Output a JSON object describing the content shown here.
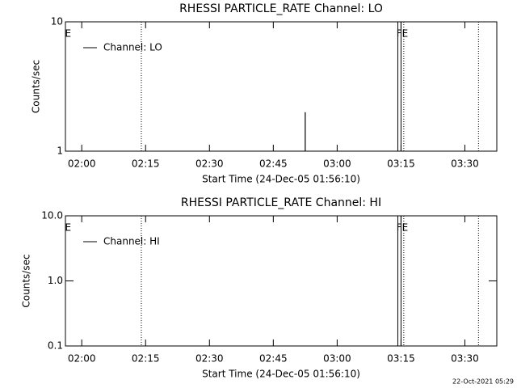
{
  "chart_data": [
    {
      "type": "line",
      "title": "RHESSI PARTICLE_RATE Channel: LO",
      "xlabel": "Start Time (24-Dec-05 01:56:10)",
      "ylabel": "Counts/sec",
      "log_y": true,
      "legend": "upper left",
      "xlim": [
        116.17,
        217.5
      ],
      "xticks": [
        {
          "value": 120,
          "label": "02:00"
        },
        {
          "value": 135,
          "label": "02:15"
        },
        {
          "value": 150,
          "label": "02:30"
        },
        {
          "value": 165,
          "label": "02:45"
        },
        {
          "value": 180,
          "label": "03:00"
        },
        {
          "value": 195,
          "label": "03:15"
        },
        {
          "value": 210,
          "label": "03:30"
        }
      ],
      "ylim": [
        1,
        10
      ],
      "yticks": [
        1,
        10
      ],
      "series": [
        {
          "name": "Channel: LO",
          "color": "#000000",
          "x": [
            172.5,
            172.5
          ],
          "values": [
            1,
            2
          ]
        }
      ],
      "flags": [
        {
          "x": 134,
          "style": "dotted"
        },
        {
          "x": 194.25,
          "style": "solid"
        },
        {
          "x": 195.0,
          "style": "solid"
        },
        {
          "x": 195.65,
          "style": "dotted"
        },
        {
          "x": 213.2,
          "style": "dotted"
        }
      ],
      "flag_labels": [
        {
          "x": 116.8,
          "label": "E"
        },
        {
          "x": 195.3,
          "label": "FE"
        }
      ]
    },
    {
      "type": "line",
      "title": "RHESSI PARTICLE_RATE Channel: HI",
      "xlabel": "Start Time (24-Dec-05 01:56:10)",
      "ylabel": "Counts/sec",
      "log_y": true,
      "legend": "upper left",
      "xlim": [
        116.17,
        217.5
      ],
      "xticks": [
        {
          "value": 120,
          "label": "02:00"
        },
        {
          "value": 135,
          "label": "02:15"
        },
        {
          "value": 150,
          "label": "02:30"
        },
        {
          "value": 165,
          "label": "02:45"
        },
        {
          "value": 180,
          "label": "03:00"
        },
        {
          "value": 195,
          "label": "03:15"
        },
        {
          "value": 210,
          "label": "03:30"
        }
      ],
      "ylim": [
        0.1,
        10
      ],
      "yticks": [
        0.1,
        {
          "value": 1,
          "label": "1.0"
        },
        {
          "value": 10,
          "label": "10.0"
        }
      ],
      "series": [
        {
          "name": "Channel: HI",
          "color": "#000000",
          "x": [],
          "values": []
        }
      ],
      "flags": [
        {
          "x": 134,
          "style": "dotted"
        },
        {
          "x": 194.25,
          "style": "solid"
        },
        {
          "x": 195.0,
          "style": "solid"
        },
        {
          "x": 195.65,
          "style": "dotted"
        },
        {
          "x": 213.2,
          "style": "dotted"
        }
      ],
      "flag_labels": [
        {
          "x": 116.8,
          "label": "E"
        },
        {
          "x": 195.3,
          "label": "FE"
        }
      ]
    }
  ],
  "footer": "22-Oct-2021 05:29"
}
